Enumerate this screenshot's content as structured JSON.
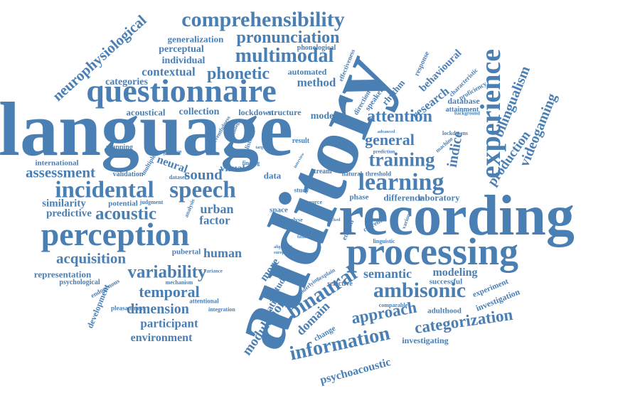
{
  "word_color": "#4a7fb4",
  "background_color": "#ffffff",
  "words": [
    "language",
    "auditory",
    "recording",
    "processing",
    "questionnaire",
    "perception",
    "experience",
    "comprehensibility",
    "incidental",
    "speech",
    "multimodal",
    "pronunciation",
    "neurophysiological",
    "learning",
    "training",
    "attention",
    "binaural",
    "ambisonic",
    "information",
    "categorization",
    "approach",
    "variability",
    "temporal",
    "dimension",
    "acoustic",
    "assessment",
    "acquisition",
    "videogaming",
    "bilingualism",
    "production",
    "phonetic",
    "contextual",
    "method",
    "general",
    "research",
    "behavioural",
    "indice",
    "sound",
    "neural",
    "urban",
    "factor",
    "human",
    "similarity",
    "predictive",
    "representation",
    "psychological",
    "development",
    "environment",
    "participant",
    "modulation",
    "domain",
    "location",
    "psychoacoustic",
    "investigating",
    "adulthood",
    "investigation",
    "experiment",
    "semantic",
    "modeling",
    "successful",
    "database",
    "attainment",
    "proficiency",
    "characteristic",
    "response",
    "rhythm",
    "speaker",
    "direction",
    "model",
    "structure",
    "lockdown",
    "collection",
    "acoustical",
    "categories",
    "individual",
    "perceptual",
    "generalization",
    "phonological",
    "automated",
    "effectiveness",
    "visual",
    "international",
    "mapping",
    "validation",
    "cognitive",
    "multiple",
    "dataset",
    "judgment",
    "potential",
    "pubertal",
    "mechanism",
    "endogenous",
    "pleasantness",
    "attentional",
    "integration",
    "variance",
    "more",
    "studies",
    "underlying",
    "explain",
    "selective",
    "change",
    "comparable",
    "linguistic",
    "various",
    "current",
    "english",
    "space",
    "phase",
    "difference",
    "laboratory",
    "natural",
    "threshold",
    "stream",
    "study",
    "data",
    "finding",
    "result",
    "listener",
    "psychology",
    "eventfulness",
    "target",
    "building",
    "prediction",
    "machine",
    "lockdowns",
    "background",
    "advanced",
    "analysis",
    "alignment",
    "european",
    "project",
    "analyse",
    "source",
    "vowel",
    "interview",
    "locked",
    "future"
  ]
}
